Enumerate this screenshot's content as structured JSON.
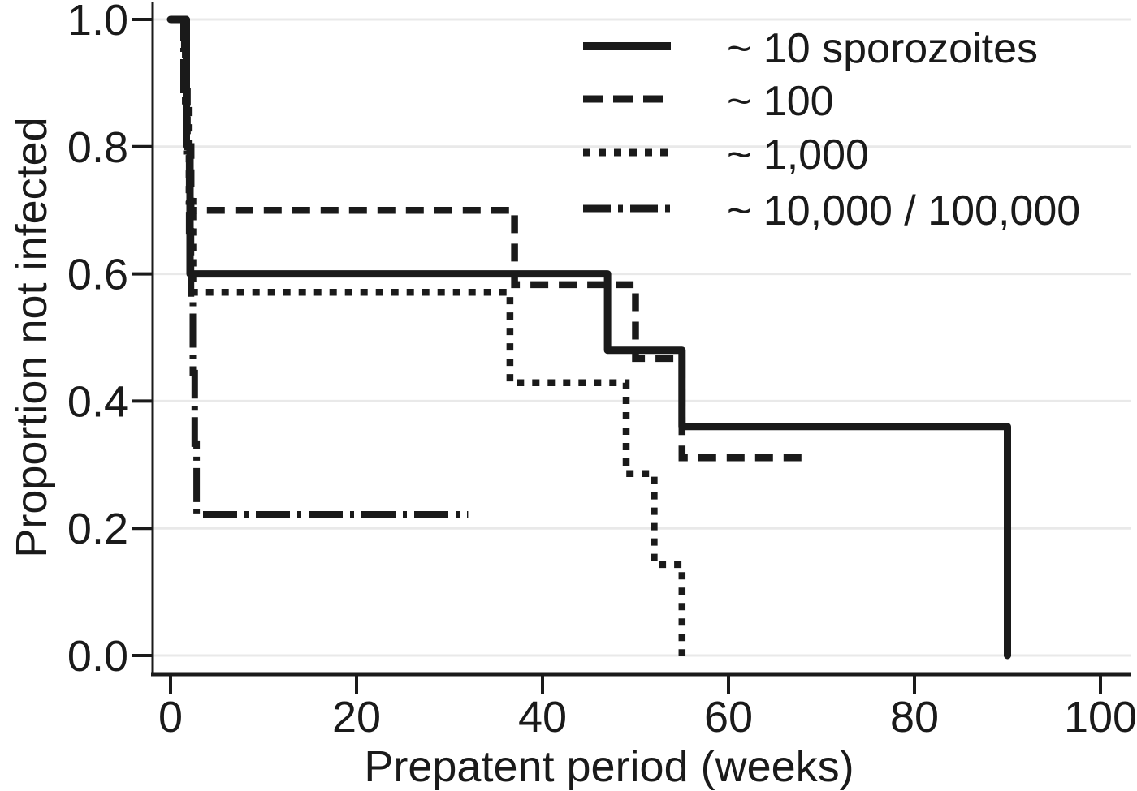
{
  "figure": {
    "background": "#ffffff",
    "ink_color": "#1a1a1a",
    "gridline_color": "#e9e9e9"
  },
  "chart_data": {
    "type": "line",
    "subtype": "kaplan-meier-step",
    "title": "",
    "xlabel": "Prepatent period (weeks)",
    "ylabel": "Proportion not infected",
    "xlim": [
      0,
      100
    ],
    "ylim": [
      0.0,
      1.0
    ],
    "x_ticks": [
      0,
      20,
      40,
      60,
      80,
      100
    ],
    "x_tick_labels": [
      "0",
      "20",
      "40",
      "60",
      "80",
      "100"
    ],
    "y_ticks": [
      1.0,
      0.8,
      0.6,
      0.4,
      0.2,
      0.0
    ],
    "y_tick_labels": [
      "1.0",
      "0.8",
      "0.6",
      "0.4",
      "0.2",
      "0.0"
    ],
    "grid": "horizontal-only",
    "legend_position": "top-right",
    "series": [
      {
        "name": "~ 10 sporozoites",
        "style": "solid",
        "steps": [
          [
            0,
            1.0
          ],
          [
            1.7,
            0.8
          ],
          [
            2.1,
            0.6
          ],
          [
            47,
            0.48
          ],
          [
            55,
            0.36
          ],
          [
            90,
            0.0
          ]
        ],
        "end_x": 90
      },
      {
        "name": "~ 100",
        "style": "dashed",
        "steps": [
          [
            0,
            1.0
          ],
          [
            1.5,
            0.9
          ],
          [
            1.8,
            0.8
          ],
          [
            2.2,
            0.7
          ],
          [
            37,
            0.583
          ],
          [
            50,
            0.467
          ],
          [
            55,
            0.311
          ]
        ],
        "end_x": 68
      },
      {
        "name": "~ 1,000",
        "style": "dotted",
        "steps": [
          [
            0,
            1.0
          ],
          [
            1.6,
            0.857
          ],
          [
            2.0,
            0.714
          ],
          [
            2.4,
            0.571
          ],
          [
            36.5,
            0.429
          ],
          [
            49,
            0.286
          ],
          [
            52,
            0.143
          ],
          [
            55,
            0.0
          ]
        ],
        "end_x": 55
      },
      {
        "name": "~ 10,000 / 100,000",
        "style": "dashdot",
        "steps": [
          [
            0,
            1.0
          ],
          [
            1.4,
            0.889
          ],
          [
            1.7,
            0.778
          ],
          [
            2.0,
            0.667
          ],
          [
            2.2,
            0.556
          ],
          [
            2.4,
            0.444
          ],
          [
            2.6,
            0.333
          ],
          [
            2.8,
            0.222
          ]
        ],
        "end_x": 32
      }
    ]
  }
}
